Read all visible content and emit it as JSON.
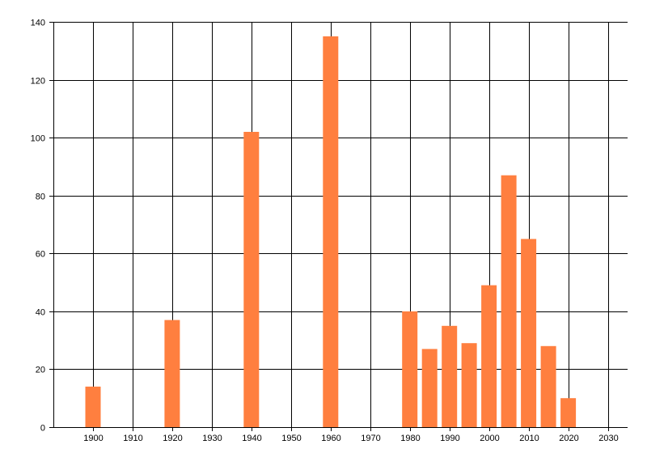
{
  "chart_data": {
    "type": "bar",
    "title": "",
    "xlabel": "",
    "ylabel": "",
    "x": [
      1900,
      1920,
      1940,
      1960,
      1980,
      1985,
      1990,
      1995,
      2000,
      2005,
      2010,
      2015,
      2020
    ],
    "values": [
      14,
      37,
      102,
      135,
      40,
      27,
      35,
      29,
      49,
      87,
      65,
      28,
      10
    ],
    "xlim": [
      1890,
      2035
    ],
    "ylim": [
      0,
      140
    ],
    "x_ticks": [
      1900,
      1910,
      1920,
      1930,
      1940,
      1950,
      1960,
      1970,
      1980,
      1990,
      2000,
      2010,
      2020,
      2030
    ],
    "y_ticks": [
      0,
      20,
      40,
      60,
      80,
      100,
      120,
      140
    ],
    "grid": true,
    "legend": "none",
    "colors": {
      "bar": "#FF7F3F",
      "grid": "#000000",
      "background": "#FFFFFF"
    }
  }
}
